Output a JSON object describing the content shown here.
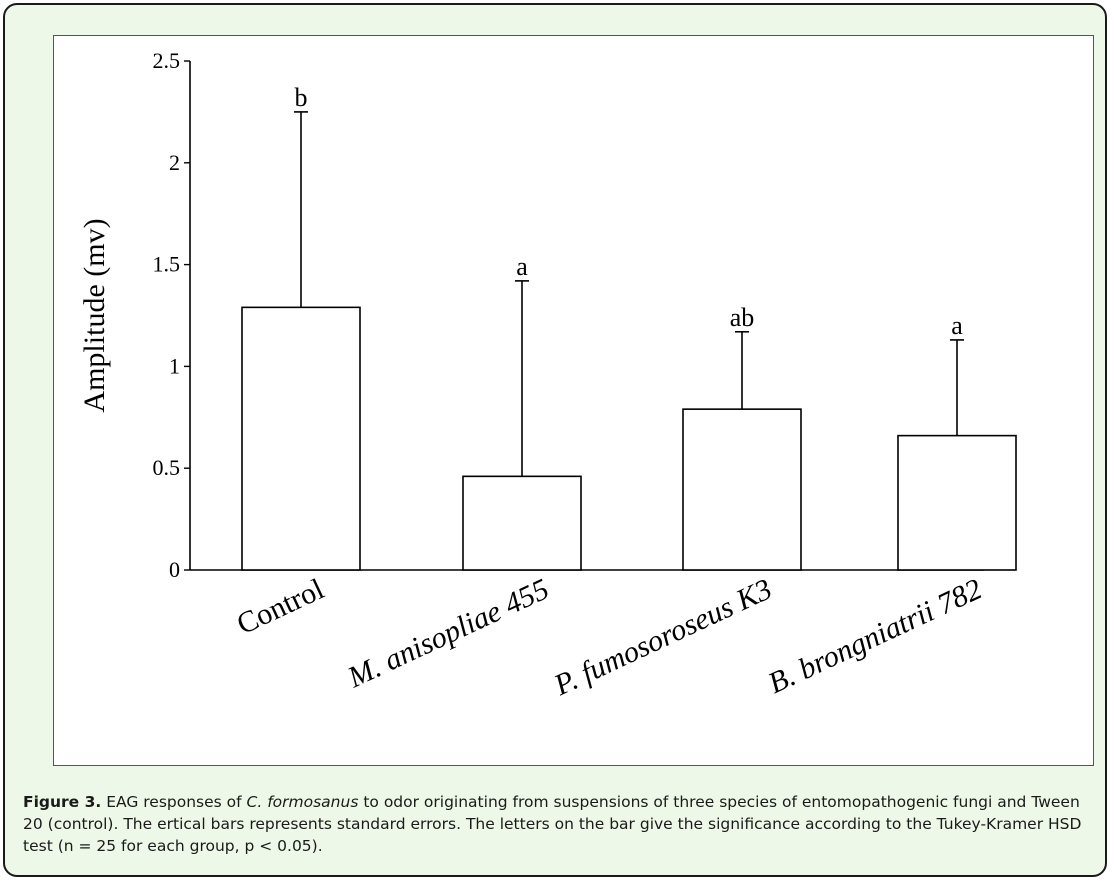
{
  "chart_data": {
    "type": "bar",
    "ylabel": "Amplitude (mv)",
    "xlabel": "",
    "ylim": [
      0,
      2.5
    ],
    "yticks": [
      "0",
      "0.5",
      "1",
      "1.5",
      "2",
      "2.5"
    ],
    "categories": [
      "Control",
      "M. anisopliae 455",
      "P. fumosoroseus K3",
      "B. brongniatrii 782"
    ],
    "values": [
      1.29,
      0.46,
      0.79,
      0.66
    ],
    "errors": [
      0.96,
      0.96,
      0.38,
      0.47
    ],
    "significance": [
      "b",
      "a",
      "ab",
      "a"
    ],
    "grid": false,
    "bar_fill": "#ffffff",
    "bar_stroke": "#000000"
  },
  "caption": {
    "label": "Figure 3.",
    "text_a": " EAG responses of ",
    "species": "C. formosanus",
    "text_b": " to odor originating from suspensions of three species of entomopathogenic fungi and Tween 20 (control). The ertical bars represents standard errors. The letters on the bar give the significance according to the Tukey-Kramer HSD test (n = 25 for each group, p < 0.05)."
  },
  "colors": {
    "frame_background": "#eef8e8",
    "frame_border": "#1a1a1a"
  }
}
